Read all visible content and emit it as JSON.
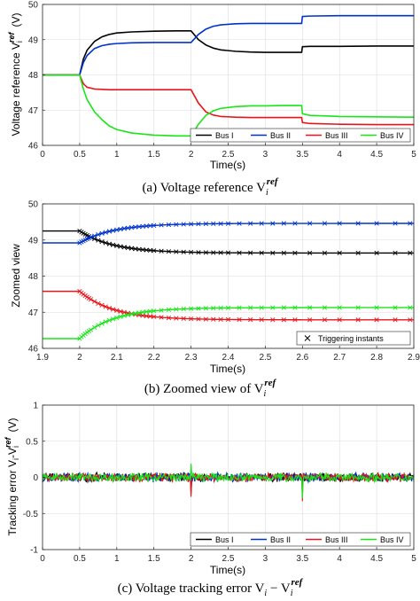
{
  "colors": {
    "bus1": "#000000",
    "bus2": "#0033cc",
    "bus3": "#e8141b",
    "bus4": "#19e619",
    "axis": "#262626",
    "grid": "#dcdcdc"
  },
  "chart_data": [
    {
      "type": "line",
      "xlabel": "Time(s)",
      "ylabel": "Voltage reference V",
      "ylabel_sub": "i",
      "ylabel_sup": "ref",
      "ylabel_unit": "(V)",
      "xlim": [
        0,
        5
      ],
      "ylim": [
        46,
        50
      ],
      "xticks": [
        "0",
        "0.5",
        "1",
        "1.5",
        "2",
        "2.5",
        "3",
        "3.5",
        "4",
        "4.5",
        "5"
      ],
      "yticks": [
        "46",
        "47",
        "48",
        "49",
        "50"
      ],
      "grid": true,
      "legend": "bottom-right, horizontal",
      "caption": "(a) Voltage reference V",
      "caption_sub": "i",
      "caption_sup": "ref",
      "series": [
        {
          "name": "Bus I",
          "color": "#000000",
          "x": [
            0,
            0.5,
            0.55,
            0.6,
            0.7,
            0.8,
            0.9,
            1.0,
            1.2,
            1.5,
            1.8,
            2.0,
            2.1,
            2.2,
            2.3,
            2.4,
            2.6,
            2.8,
            3.0,
            3.2,
            3.49,
            3.5,
            3.6,
            4.0,
            4.5,
            5.0
          ],
          "y": [
            48.0,
            48.0,
            48.45,
            48.7,
            48.95,
            49.08,
            49.15,
            49.19,
            49.22,
            49.24,
            49.25,
            49.25,
            49.0,
            48.85,
            48.76,
            48.71,
            48.67,
            48.65,
            48.64,
            48.64,
            48.64,
            48.8,
            48.81,
            48.81,
            48.82,
            48.82
          ]
        },
        {
          "name": "Bus II",
          "color": "#0033cc",
          "x": [
            0,
            0.5,
            0.55,
            0.6,
            0.7,
            0.8,
            0.9,
            1.0,
            1.2,
            1.5,
            1.8,
            2.0,
            2.1,
            2.2,
            2.3,
            2.4,
            2.6,
            2.8,
            3.0,
            3.2,
            3.49,
            3.5,
            3.6,
            4.0,
            4.5,
            5.0
          ],
          "y": [
            48.0,
            48.0,
            48.35,
            48.55,
            48.75,
            48.83,
            48.87,
            48.89,
            48.91,
            48.92,
            48.92,
            48.92,
            49.15,
            49.3,
            49.38,
            49.42,
            49.45,
            49.46,
            49.46,
            49.46,
            49.46,
            49.66,
            49.67,
            49.68,
            49.68,
            49.68
          ]
        },
        {
          "name": "Bus III",
          "color": "#e8141b",
          "x": [
            0,
            0.5,
            0.55,
            0.6,
            0.7,
            0.8,
            0.9,
            1.0,
            1.2,
            1.5,
            1.8,
            2.0,
            2.1,
            2.2,
            2.3,
            2.4,
            2.6,
            2.8,
            3.0,
            3.2,
            3.49,
            3.5,
            3.6,
            4.0,
            4.5,
            5.0
          ],
          "y": [
            48.0,
            48.0,
            47.75,
            47.65,
            47.6,
            47.59,
            47.58,
            47.58,
            47.58,
            47.58,
            47.58,
            47.58,
            47.2,
            46.95,
            46.86,
            46.82,
            46.8,
            46.79,
            46.79,
            46.79,
            46.79,
            46.65,
            46.62,
            46.6,
            46.59,
            46.59
          ]
        },
        {
          "name": "Bus IV",
          "color": "#19e619",
          "x": [
            0,
            0.5,
            0.55,
            0.6,
            0.7,
            0.8,
            0.9,
            1.0,
            1.2,
            1.5,
            1.8,
            2.0,
            2.1,
            2.2,
            2.3,
            2.4,
            2.6,
            2.8,
            3.0,
            3.2,
            3.49,
            3.5,
            3.6,
            4.0,
            4.5,
            5.0
          ],
          "y": [
            48.0,
            48.0,
            47.6,
            47.3,
            46.95,
            46.73,
            46.55,
            46.45,
            46.35,
            46.29,
            46.27,
            46.27,
            46.6,
            46.85,
            46.98,
            47.05,
            47.1,
            47.12,
            47.12,
            47.13,
            47.13,
            46.9,
            46.85,
            46.82,
            46.81,
            46.8
          ]
        }
      ]
    },
    {
      "type": "line",
      "xlabel": "Time(s)",
      "ylabel": "Zoomed view",
      "xlim": [
        1.9,
        2.9
      ],
      "ylim": [
        46,
        50
      ],
      "xticks": [
        "1.9",
        "2",
        "2.1",
        "2.2",
        "2.3",
        "2.4",
        "2.5",
        "2.6",
        "2.7",
        "2.8",
        "2.9"
      ],
      "yticks": [
        "46",
        "47",
        "48",
        "49",
        "50"
      ],
      "grid": true,
      "legend": "bottom-right",
      "legend_label": "Triggering instants",
      "caption": "(b) Zoomed view of V",
      "caption_sub": "i",
      "caption_sup": "ref",
      "series": [
        {
          "color": "#000000",
          "start": 49.25,
          "end": 48.64
        },
        {
          "color": "#0033cc",
          "start": 48.92,
          "end": 49.46
        },
        {
          "color": "#e8141b",
          "start": 47.58,
          "end": 46.79
        },
        {
          "color": "#19e619",
          "start": 46.27,
          "end": 47.13
        }
      ],
      "step_time": 2.0,
      "time_constant": 0.09,
      "trigger_times": [
        2.0,
        2.005,
        2.01,
        2.015,
        2.02,
        2.025,
        2.03,
        2.04,
        2.05,
        2.06,
        2.07,
        2.08,
        2.09,
        2.1,
        2.11,
        2.12,
        2.13,
        2.14,
        2.15,
        2.16,
        2.17,
        2.18,
        2.19,
        2.2,
        2.22,
        2.24,
        2.26,
        2.28,
        2.3,
        2.32,
        2.34,
        2.36,
        2.38,
        2.4,
        2.43,
        2.46,
        2.49,
        2.52,
        2.55,
        2.58,
        2.62,
        2.66,
        2.7,
        2.75,
        2.8,
        2.85,
        2.89
      ]
    },
    {
      "type": "line",
      "xlabel": "Time(s)",
      "ylabel": "Tracking error V",
      "ylabel_sub1": "i",
      "ylabel_sep": "-V",
      "ylabel_sub2": "i",
      "ylabel_sup": "ref",
      "ylabel_unit": "(V)",
      "xlim": [
        0,
        5
      ],
      "ylim": [
        -1,
        1
      ],
      "xticks": [
        "0",
        "0.5",
        "1",
        "1.5",
        "2",
        "2.5",
        "3",
        "3.5",
        "4",
        "4.5",
        "5"
      ],
      "yticks": [
        "-1",
        "-0.5",
        "0",
        "0.5",
        "1"
      ],
      "grid": true,
      "legend": "bottom-right, horizontal",
      "noise_amplitude": 0.07,
      "spikes": [
        {
          "t": 2.0,
          "series": "Bus I",
          "value": -0.22
        },
        {
          "t": 2.0,
          "series": "Bus III",
          "value": -0.27
        },
        {
          "t": 2.0,
          "series": "Bus IV",
          "value": 0.19
        },
        {
          "t": 3.5,
          "series": "Bus II",
          "value": -0.18
        },
        {
          "t": 3.5,
          "series": "Bus III",
          "value": -0.33
        },
        {
          "t": 3.5,
          "series": "Bus IV",
          "value": -0.29
        }
      ],
      "caption": "(c) Voltage tracking error V",
      "caption_sub1": "i",
      "caption_sep": " − V",
      "caption_sub2": "i",
      "caption_sup": "ref",
      "series": [
        {
          "name": "Bus I",
          "color": "#000000"
        },
        {
          "name": "Bus II",
          "color": "#0033cc"
        },
        {
          "name": "Bus III",
          "color": "#e8141b"
        },
        {
          "name": "Bus IV",
          "color": "#19e619"
        }
      ]
    }
  ]
}
